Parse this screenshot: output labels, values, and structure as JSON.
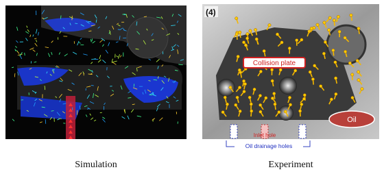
{
  "simulation": {
    "caption": "Simulation"
  },
  "experiment": {
    "panel_label": "(4)",
    "annotations": {
      "collision_plate": "Collision plate",
      "oil": "Oil",
      "inlet_hole": "Inlet hole",
      "drainage_holes": "Oil drainage holes"
    },
    "caption": "Experiment"
  }
}
